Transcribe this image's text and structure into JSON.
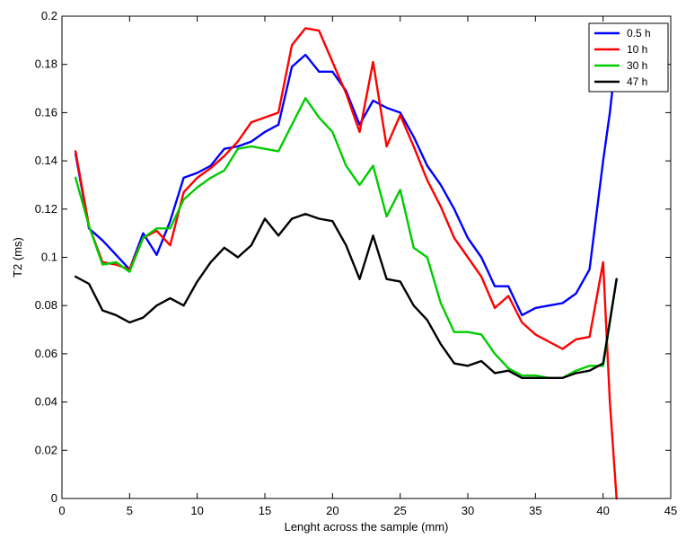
{
  "chart_data": {
    "type": "line",
    "title": "",
    "xlabel": "Lenght across the sample (mm)",
    "ylabel": "T2 (ms)",
    "xlim": [
      0,
      45
    ],
    "ylim": [
      0,
      0.2
    ],
    "x_ticks": [
      0,
      5,
      10,
      15,
      20,
      25,
      30,
      35,
      40,
      45
    ],
    "x_tick_labels": [
      "0",
      "5",
      "10",
      "15",
      "20",
      "25",
      "30",
      "35",
      "40",
      "45"
    ],
    "y_ticks": [
      0,
      0.02,
      0.04,
      0.06,
      0.08,
      0.1,
      0.12,
      0.14,
      0.16,
      0.18,
      0.2
    ],
    "y_tick_labels": [
      "0",
      "0.02",
      "0.04",
      "0.06",
      "0.08",
      "0.1",
      "0.12",
      "0.14",
      "0.16",
      "0.18",
      "0.2"
    ],
    "grid": false,
    "legend_position": "top-right",
    "series": [
      {
        "name": "0.5 h",
        "color": "#0000ff",
        "points": [
          [
            1,
            0.143
          ],
          [
            2,
            0.112
          ],
          [
            3,
            0.107
          ],
          [
            4,
            0.101
          ],
          [
            5,
            0.095
          ],
          [
            6,
            0.11
          ],
          [
            7,
            0.101
          ],
          [
            8,
            0.115
          ],
          [
            9,
            0.133
          ],
          [
            10,
            0.135
          ],
          [
            11,
            0.138
          ],
          [
            12,
            0.145
          ],
          [
            13,
            0.146
          ],
          [
            14,
            0.148
          ],
          [
            15,
            0.152
          ],
          [
            16,
            0.155
          ],
          [
            17,
            0.179
          ],
          [
            18,
            0.184
          ],
          [
            19,
            0.177
          ],
          [
            20,
            0.177
          ],
          [
            21,
            0.169
          ],
          [
            22,
            0.155
          ],
          [
            23,
            0.165
          ],
          [
            24,
            0.162
          ],
          [
            25,
            0.16
          ],
          [
            26,
            0.15
          ],
          [
            27,
            0.138
          ],
          [
            28,
            0.13
          ],
          [
            29,
            0.12
          ],
          [
            30,
            0.108
          ],
          [
            31,
            0.1
          ],
          [
            32,
            0.088
          ],
          [
            33,
            0.088
          ],
          [
            34,
            0.076
          ],
          [
            35,
            0.079
          ],
          [
            36,
            0.08
          ],
          [
            37,
            0.081
          ],
          [
            38,
            0.085
          ],
          [
            39,
            0.095
          ],
          [
            40,
            0.14
          ],
          [
            40.5,
            0.16
          ],
          [
            41,
            0.185
          ]
        ]
      },
      {
        "name": "10 h",
        "color": "#ff0000",
        "points": [
          [
            1,
            0.144
          ],
          [
            2,
            0.113
          ],
          [
            3,
            0.098
          ],
          [
            4,
            0.097
          ],
          [
            5,
            0.095
          ],
          [
            6,
            0.108
          ],
          [
            7,
            0.111
          ],
          [
            8,
            0.105
          ],
          [
            9,
            0.127
          ],
          [
            10,
            0.133
          ],
          [
            11,
            0.137
          ],
          [
            12,
            0.142
          ],
          [
            13,
            0.148
          ],
          [
            14,
            0.156
          ],
          [
            15,
            0.158
          ],
          [
            16,
            0.16
          ],
          [
            17,
            0.188
          ],
          [
            18,
            0.195
          ],
          [
            19,
            0.194
          ],
          [
            20,
            0.181
          ],
          [
            21,
            0.168
          ],
          [
            22,
            0.152
          ],
          [
            23,
            0.181
          ],
          [
            24,
            0.146
          ],
          [
            25,
            0.159
          ],
          [
            26,
            0.146
          ],
          [
            27,
            0.132
          ],
          [
            28,
            0.121
          ],
          [
            29,
            0.108
          ],
          [
            30,
            0.1
          ],
          [
            31,
            0.092
          ],
          [
            32,
            0.079
          ],
          [
            33,
            0.084
          ],
          [
            34,
            0.073
          ],
          [
            35,
            0.068
          ],
          [
            36,
            0.065
          ],
          [
            37,
            0.062
          ],
          [
            38,
            0.066
          ],
          [
            39,
            0.067
          ],
          [
            40,
            0.098
          ],
          [
            40.5,
            0.04
          ],
          [
            41,
            0.0
          ]
        ]
      },
      {
        "name": "30 h",
        "color": "#00cc00",
        "points": [
          [
            1,
            0.133
          ],
          [
            2,
            0.113
          ],
          [
            3,
            0.097
          ],
          [
            4,
            0.098
          ],
          [
            5,
            0.094
          ],
          [
            6,
            0.108
          ],
          [
            7,
            0.112
          ],
          [
            8,
            0.112
          ],
          [
            9,
            0.124
          ],
          [
            10,
            0.129
          ],
          [
            11,
            0.133
          ],
          [
            12,
            0.136
          ],
          [
            13,
            0.145
          ],
          [
            14,
            0.146
          ],
          [
            15,
            0.145
          ],
          [
            16,
            0.144
          ],
          [
            17,
            0.155
          ],
          [
            18,
            0.166
          ],
          [
            19,
            0.158
          ],
          [
            20,
            0.152
          ],
          [
            21,
            0.138
          ],
          [
            22,
            0.13
          ],
          [
            23,
            0.138
          ],
          [
            24,
            0.117
          ],
          [
            25,
            0.128
          ],
          [
            26,
            0.104
          ],
          [
            27,
            0.1
          ],
          [
            28,
            0.081
          ],
          [
            29,
            0.069
          ],
          [
            30,
            0.069
          ],
          [
            31,
            0.068
          ],
          [
            32,
            0.06
          ],
          [
            33,
            0.054
          ],
          [
            34,
            0.051
          ],
          [
            35,
            0.051
          ],
          [
            36,
            0.05
          ],
          [
            37,
            0.05
          ],
          [
            38,
            0.053
          ],
          [
            39,
            0.055
          ],
          [
            40,
            0.055
          ],
          [
            41,
            0.091
          ]
        ]
      },
      {
        "name": "47 h",
        "color": "#000000",
        "points": [
          [
            1,
            0.092
          ],
          [
            2,
            0.089
          ],
          [
            3,
            0.078
          ],
          [
            4,
            0.076
          ],
          [
            5,
            0.073
          ],
          [
            6,
            0.075
          ],
          [
            7,
            0.08
          ],
          [
            8,
            0.083
          ],
          [
            9,
            0.08
          ],
          [
            10,
            0.09
          ],
          [
            11,
            0.098
          ],
          [
            12,
            0.104
          ],
          [
            13,
            0.1
          ],
          [
            14,
            0.105
          ],
          [
            15,
            0.116
          ],
          [
            16,
            0.109
          ],
          [
            17,
            0.116
          ],
          [
            18,
            0.118
          ],
          [
            19,
            0.116
          ],
          [
            20,
            0.115
          ],
          [
            21,
            0.105
          ],
          [
            22,
            0.091
          ],
          [
            23,
            0.109
          ],
          [
            24,
            0.091
          ],
          [
            25,
            0.09
          ],
          [
            26,
            0.08
          ],
          [
            27,
            0.074
          ],
          [
            28,
            0.064
          ],
          [
            29,
            0.056
          ],
          [
            30,
            0.055
          ],
          [
            31,
            0.057
          ],
          [
            32,
            0.052
          ],
          [
            33,
            0.053
          ],
          [
            34,
            0.05
          ],
          [
            35,
            0.05
          ],
          [
            36,
            0.05
          ],
          [
            37,
            0.05
          ],
          [
            38,
            0.052
          ],
          [
            39,
            0.053
          ],
          [
            40,
            0.056
          ],
          [
            41,
            0.091
          ]
        ]
      }
    ]
  }
}
